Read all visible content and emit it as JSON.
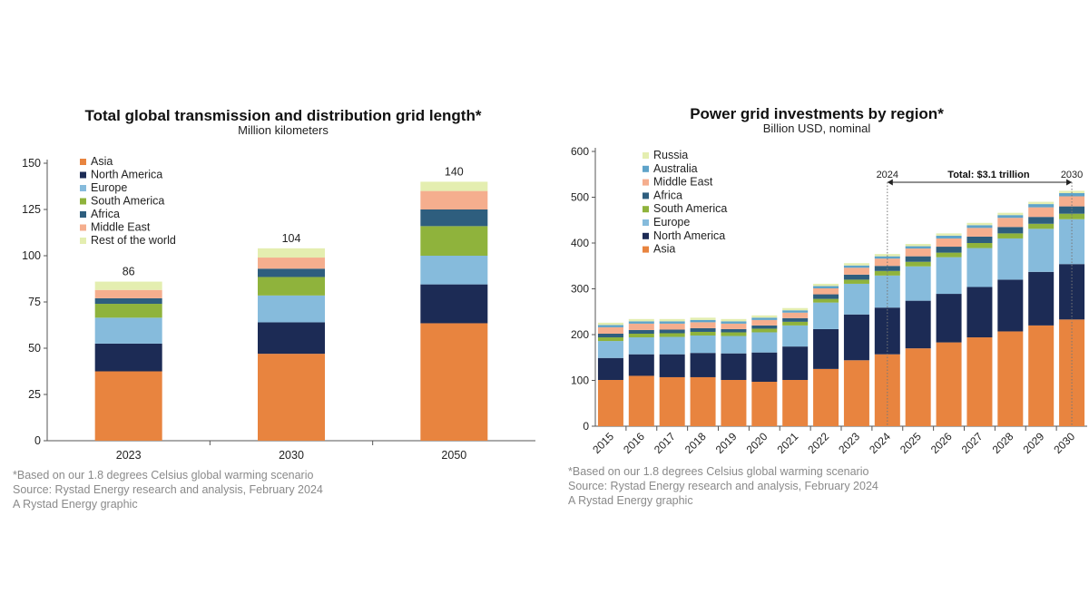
{
  "colors": {
    "Asia": "#E8843F",
    "North America": "#1C2B55",
    "Europe": "#86BBDC",
    "South America": "#8FB33C",
    "Africa": "#2E5E7E",
    "Middle East": "#F5AE8E",
    "Rest of the world": "#E4EEB0",
    "Australia": "#5EA3C9",
    "Russia": "#E4EEB0"
  },
  "left": {
    "footnotes": [
      "*Based on our 1.8 degrees Celsius global warming scenario",
      "Source: Rystad Energy research and analysis, February 2024",
      "A Rystad Energy graphic"
    ]
  },
  "right": {
    "footnotes": [
      "*Based on our 1.8 degrees Celsius global warming scenario",
      "Source: Rystad Energy research and analysis, February 2024",
      "A Rystad Energy graphic"
    ]
  },
  "chart_data": [
    {
      "type": "bar",
      "stacked": true,
      "title": "Total global transmission and distribution grid length*",
      "subtitle": "Million kilometers",
      "categories": [
        "2023",
        "2030",
        "2050"
      ],
      "totals": [
        86,
        104,
        140
      ],
      "ylim": [
        0,
        150
      ],
      "yticks": [
        0,
        25,
        50,
        75,
        100,
        125,
        150
      ],
      "legend_position": "top-left",
      "legend": [
        "Asia",
        "North America",
        "Europe",
        "South America",
        "Africa",
        "Middle East",
        "Rest of the world"
      ],
      "series": [
        {
          "name": "Asia",
          "values": [
            37.5,
            47,
            63.5
          ]
        },
        {
          "name": "North America",
          "values": [
            15,
            17,
            21
          ]
        },
        {
          "name": "Europe",
          "values": [
            14,
            14.5,
            15.5
          ]
        },
        {
          "name": "South America",
          "values": [
            7.5,
            10,
            16
          ]
        },
        {
          "name": "Africa",
          "values": [
            3,
            4.5,
            9
          ]
        },
        {
          "name": "Middle East",
          "values": [
            4.5,
            6,
            10
          ]
        },
        {
          "name": "Rest of the world",
          "values": [
            4.5,
            5,
            5
          ]
        }
      ]
    },
    {
      "type": "bar",
      "stacked": true,
      "title": "Power grid investments by region*",
      "subtitle": "Billion USD, nominal",
      "categories": [
        "2015",
        "2016",
        "2017",
        "2018",
        "2019",
        "2020",
        "2021",
        "2022",
        "2023",
        "2024",
        "2025",
        "2026",
        "2027",
        "2028",
        "2029",
        "2030"
      ],
      "ylim": [
        0,
        600
      ],
      "yticks": [
        0,
        100,
        200,
        300,
        400,
        500,
        600
      ],
      "legend_position": "top-left",
      "legend": [
        "Russia",
        "Australia",
        "Middle East",
        "Africa",
        "South America",
        "Europe",
        "North America",
        "Asia"
      ],
      "annotation": {
        "from": "2024",
        "to": "2030",
        "text": "Total: $3.1 trillion"
      },
      "series": [
        {
          "name": "Asia",
          "values": [
            101,
            110,
            107,
            107,
            101,
            97,
            101,
            125,
            144,
            157,
            170,
            183,
            194,
            207,
            220,
            233
          ]
        },
        {
          "name": "North America",
          "values": [
            48,
            47,
            50,
            53,
            58,
            64,
            73,
            87,
            100,
            102,
            104,
            106,
            110,
            113,
            117,
            121
          ]
        },
        {
          "name": "Europe",
          "values": [
            37,
            37,
            38,
            38,
            38,
            44,
            46,
            58,
            67,
            70,
            75,
            80,
            85,
            90,
            94,
            98
          ]
        },
        {
          "name": "South America",
          "values": [
            8,
            8,
            8,
            8,
            8,
            8,
            8,
            8,
            9,
            10,
            10,
            10,
            11,
            11,
            11,
            12
          ]
        },
        {
          "name": "Africa",
          "values": [
            8,
            8,
            8,
            8,
            7,
            7,
            8,
            10,
            11,
            11,
            12,
            13,
            14,
            14,
            15,
            16
          ]
        },
        {
          "name": "Middle East",
          "values": [
            14,
            14,
            13,
            13,
            12,
            12,
            12,
            13,
            15,
            16,
            17,
            18,
            19,
            20,
            21,
            22
          ]
        },
        {
          "name": "Australia",
          "values": [
            5,
            5,
            5,
            5,
            5,
            5,
            5,
            5,
            5,
            5,
            5,
            6,
            6,
            6,
            7,
            7
          ]
        },
        {
          "name": "Russia",
          "values": [
            5,
            5,
            5,
            5,
            5,
            5,
            5,
            5,
            5,
            5,
            5,
            5,
            5,
            5,
            5,
            5
          ]
        }
      ]
    }
  ]
}
